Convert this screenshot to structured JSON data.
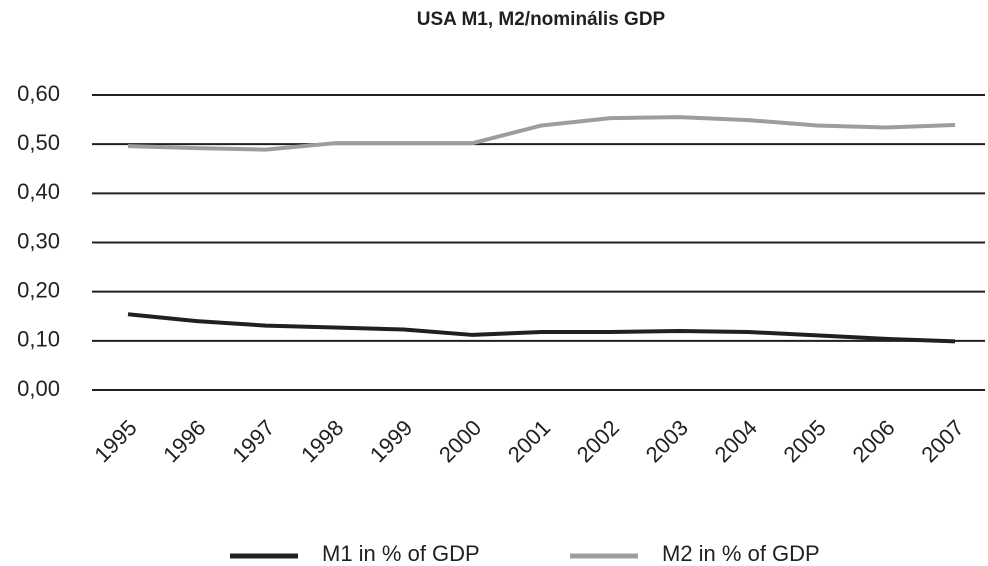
{
  "chart_data": {
    "type": "line",
    "title": "USA M1, M2/nominális GDP",
    "categories": [
      "1995",
      "1996",
      "1997",
      "1998",
      "1999",
      "2000",
      "2001",
      "2002",
      "2003",
      "2004",
      "2005",
      "2006",
      "2007"
    ],
    "series": [
      {
        "name": "M1 in % of GDP",
        "color": "#231f20",
        "values": [
          0.154,
          0.14,
          0.131,
          0.127,
          0.123,
          0.112,
          0.118,
          0.118,
          0.12,
          0.118,
          0.111,
          0.104,
          0.099
        ]
      },
      {
        "name": "M2 in % of GDP",
        "color": "#9d9d9d",
        "values": [
          0.496,
          0.492,
          0.489,
          0.502,
          0.502,
          0.502,
          0.538,
          0.553,
          0.555,
          0.549,
          0.538,
          0.534,
          0.539
        ]
      }
    ],
    "ylim": [
      0,
      0.6
    ],
    "yticks": [
      {
        "value": 0,
        "label": "0,00"
      },
      {
        "value": 0.1,
        "label": "0,10"
      },
      {
        "value": 0.2,
        "label": "0,20"
      },
      {
        "value": 0.3,
        "label": "0,30"
      },
      {
        "value": 0.4,
        "label": "0,40"
      },
      {
        "value": 0.5,
        "label": "0,50"
      },
      {
        "value": 0.6,
        "label": "0,60"
      }
    ],
    "grid": true,
    "legend": "bottom"
  }
}
